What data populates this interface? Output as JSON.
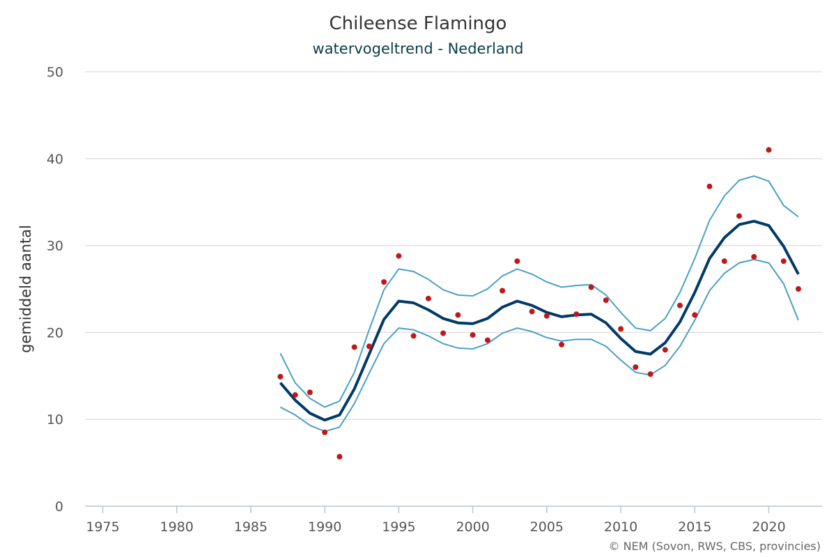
{
  "chart_data": {
    "type": "line",
    "title": "Chileense Flamingo",
    "subtitle": "watervogeltrend - Nederland",
    "xlabel": "",
    "ylabel": "gemiddeld aantal",
    "xlim": [
      1973.8,
      2023.6
    ],
    "ylim": [
      0,
      50
    ],
    "xticks": [
      1975,
      1980,
      1985,
      1990,
      1995,
      2000,
      2005,
      2010,
      2015,
      2020
    ],
    "yticks": [
      0,
      10,
      20,
      30,
      40,
      50
    ],
    "grid": true,
    "legend": "none",
    "colors": {
      "trend": "#003a66",
      "band": "#4a9fc4",
      "points": "#c0171b",
      "grid": "#e0e0e0",
      "axis": "#b8c4d6"
    },
    "x": [
      1987,
      1988,
      1989,
      1990,
      1991,
      1992,
      1993,
      1994,
      1995,
      1996,
      1997,
      1998,
      1999,
      2000,
      2001,
      2002,
      2003,
      2004,
      2005,
      2006,
      2007,
      2008,
      2009,
      2010,
      2011,
      2012,
      2013,
      2014,
      2015,
      2016,
      2017,
      2018,
      2019,
      2020,
      2021,
      2022
    ],
    "series": [
      {
        "role": "trend",
        "values": [
          14.2,
          12.2,
          10.7,
          9.9,
          10.5,
          13.5,
          17.5,
          21.5,
          23.6,
          23.4,
          22.6,
          21.6,
          21.1,
          21.0,
          21.6,
          22.9,
          23.6,
          23.1,
          22.3,
          21.8,
          22.0,
          22.1,
          21.1,
          19.3,
          17.8,
          17.5,
          18.8,
          21.2,
          24.6,
          28.5,
          30.9,
          32.4,
          32.8,
          32.3,
          29.9,
          26.7
        ]
      },
      {
        "role": "upper",
        "values": [
          17.6,
          14.2,
          12.4,
          11.4,
          12.1,
          15.4,
          20.3,
          24.9,
          27.3,
          27.0,
          26.1,
          24.9,
          24.3,
          24.2,
          25.0,
          26.5,
          27.3,
          26.7,
          25.8,
          25.2,
          25.4,
          25.5,
          24.3,
          22.3,
          20.5,
          20.2,
          21.6,
          24.6,
          28.5,
          32.9,
          35.7,
          37.5,
          38.0,
          37.4,
          34.6,
          33.3
        ]
      },
      {
        "role": "lower",
        "values": [
          11.4,
          10.5,
          9.3,
          8.6,
          9.1,
          11.8,
          15.3,
          18.7,
          20.5,
          20.3,
          19.6,
          18.7,
          18.2,
          18.1,
          18.7,
          19.9,
          20.5,
          20.1,
          19.4,
          19.0,
          19.2,
          19.2,
          18.4,
          16.8,
          15.4,
          15.1,
          16.2,
          18.4,
          21.4,
          24.8,
          26.8,
          28.0,
          28.4,
          28.0,
          25.6,
          21.4
        ]
      },
      {
        "role": "observed",
        "values": [
          14.9,
          12.8,
          13.1,
          8.5,
          5.7,
          18.3,
          18.4,
          25.8,
          28.8,
          19.6,
          23.9,
          19.9,
          22.0,
          19.7,
          19.1,
          24.8,
          28.2,
          22.4,
          21.9,
          18.6,
          22.1,
          25.2,
          23.7,
          20.4,
          16.0,
          15.2,
          18.0,
          23.1,
          22.0,
          36.8,
          28.2,
          33.4,
          28.7,
          41.0,
          28.2,
          25.0
        ]
      }
    ],
    "credits": "© NEM (Sovon, RWS, CBS, provincies)"
  }
}
